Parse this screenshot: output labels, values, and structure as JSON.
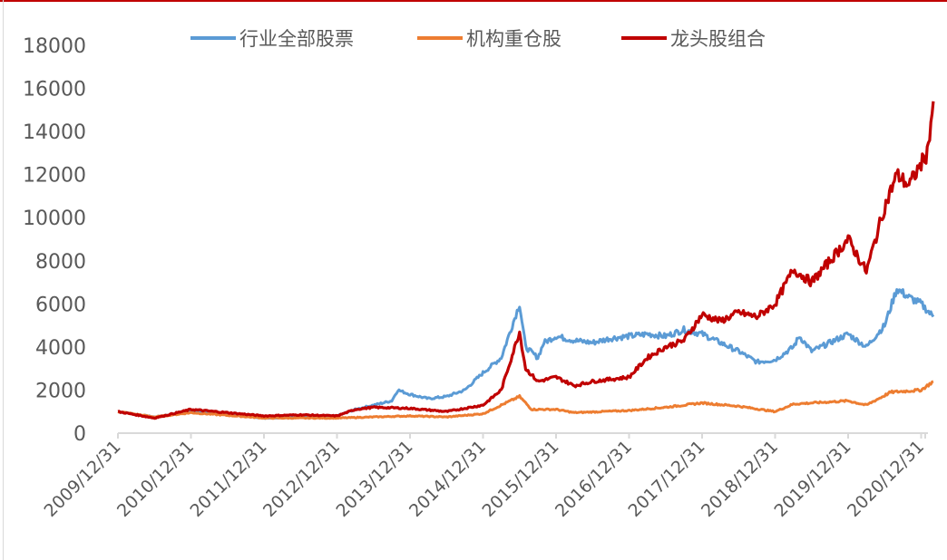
{
  "chart_data": {
    "type": "line",
    "title": "",
    "xlabel": "",
    "ylabel": "",
    "ylim": [
      0,
      18000
    ],
    "yticks": [
      "0",
      "2000",
      "4000",
      "6000",
      "8000",
      "10000",
      "12000",
      "14000",
      "16000",
      "18000"
    ],
    "xticks": [
      "2009/12/31",
      "2010/12/31",
      "2011/12/31",
      "2012/12/31",
      "2013/12/31",
      "2014/12/31",
      "2015/12/31",
      "2016/12/31",
      "2017/12/31",
      "2018/12/31",
      "2019/12/31",
      "2020/12/31"
    ],
    "grid": false,
    "legend": "top",
    "series": [
      {
        "name": "行业全部股票",
        "color": "#5b9bd5",
        "points": [
          [
            "2009-12",
            1000
          ],
          [
            "2010-06",
            750
          ],
          [
            "2010-12",
            1000
          ],
          [
            "2011-06",
            900
          ],
          [
            "2011-12",
            700
          ],
          [
            "2012-06",
            750
          ],
          [
            "2012-12",
            800
          ],
          [
            "2013-03",
            1100
          ],
          [
            "2013-06",
            1300
          ],
          [
            "2013-09",
            1500
          ],
          [
            "2013-10",
            2000
          ],
          [
            "2013-12",
            1800
          ],
          [
            "2014-03",
            1600
          ],
          [
            "2014-06",
            1700
          ],
          [
            "2014-09",
            2000
          ],
          [
            "2014-12",
            2800
          ],
          [
            "2015-03",
            3500
          ],
          [
            "2015-06",
            6000
          ],
          [
            "2015-07",
            4000
          ],
          [
            "2015-09",
            3500
          ],
          [
            "2015-10",
            4200
          ],
          [
            "2015-12",
            4500
          ],
          [
            "2016-03",
            4300
          ],
          [
            "2016-06",
            4200
          ],
          [
            "2016-09",
            4400
          ],
          [
            "2016-12",
            4500
          ],
          [
            "2017-03",
            4600
          ],
          [
            "2017-06",
            4500
          ],
          [
            "2017-09",
            4800
          ],
          [
            "2017-12",
            4600
          ],
          [
            "2018-03",
            4200
          ],
          [
            "2018-06",
            3800
          ],
          [
            "2018-09",
            3300
          ],
          [
            "2018-12",
            3400
          ],
          [
            "2019-03",
            4000
          ],
          [
            "2019-04",
            4500
          ],
          [
            "2019-06",
            3800
          ],
          [
            "2019-09",
            4200
          ],
          [
            "2019-12",
            4600
          ],
          [
            "2020-03",
            4000
          ],
          [
            "2020-06",
            5000
          ],
          [
            "2020-08",
            6700
          ],
          [
            "2020-10",
            6300
          ],
          [
            "2020-12",
            6000
          ],
          [
            "2021-02",
            5400
          ]
        ]
      },
      {
        "name": "机构重仓股",
        "color": "#ed7d31",
        "points": [
          [
            "2009-12",
            1000
          ],
          [
            "2010-06",
            750
          ],
          [
            "2010-12",
            950
          ],
          [
            "2011-12",
            700
          ],
          [
            "2012-12",
            700
          ],
          [
            "2013-06",
            750
          ],
          [
            "2013-12",
            800
          ],
          [
            "2014-06",
            750
          ],
          [
            "2014-12",
            900
          ],
          [
            "2015-06",
            1700
          ],
          [
            "2015-08",
            1100
          ],
          [
            "2015-12",
            1100
          ],
          [
            "2016-03",
            950
          ],
          [
            "2016-12",
            1050
          ],
          [
            "2017-06",
            1200
          ],
          [
            "2017-12",
            1400
          ],
          [
            "2018-06",
            1250
          ],
          [
            "2018-12",
            1000
          ],
          [
            "2019-03",
            1350
          ],
          [
            "2019-12",
            1500
          ],
          [
            "2020-03",
            1300
          ],
          [
            "2020-07",
            1900
          ],
          [
            "2020-12",
            2000
          ],
          [
            "2021-02",
            2400
          ]
        ]
      },
      {
        "name": "龙头股组合",
        "color": "#c00000",
        "points": [
          [
            "2009-12",
            1000
          ],
          [
            "2010-06",
            700
          ],
          [
            "2010-12",
            1100
          ],
          [
            "2011-06",
            950
          ],
          [
            "2011-12",
            800
          ],
          [
            "2012-06",
            850
          ],
          [
            "2012-12",
            800
          ],
          [
            "2013-03",
            1100
          ],
          [
            "2013-06",
            1200
          ],
          [
            "2013-12",
            1150
          ],
          [
            "2014-06",
            1000
          ],
          [
            "2014-12",
            1300
          ],
          [
            "2015-03",
            2000
          ],
          [
            "2015-06",
            4700
          ],
          [
            "2015-07",
            3000
          ],
          [
            "2015-09",
            2400
          ],
          [
            "2015-12",
            2600
          ],
          [
            "2016-03",
            2200
          ],
          [
            "2016-06",
            2400
          ],
          [
            "2016-12",
            2600
          ],
          [
            "2017-03",
            3500
          ],
          [
            "2017-06",
            4000
          ],
          [
            "2017-09",
            4300
          ],
          [
            "2017-12",
            5500
          ],
          [
            "2018-03",
            5200
          ],
          [
            "2018-06",
            5600
          ],
          [
            "2018-09",
            5400
          ],
          [
            "2018-12",
            6000
          ],
          [
            "2019-03",
            7600
          ],
          [
            "2019-06",
            7000
          ],
          [
            "2019-09",
            8000
          ],
          [
            "2019-12",
            9000
          ],
          [
            "2020-03",
            7500
          ],
          [
            "2020-06",
            10500
          ],
          [
            "2020-08",
            12000
          ],
          [
            "2020-10",
            11500
          ],
          [
            "2020-12",
            12500
          ],
          [
            "2021-01",
            13000
          ],
          [
            "2021-02",
            15400
          ]
        ]
      }
    ]
  }
}
